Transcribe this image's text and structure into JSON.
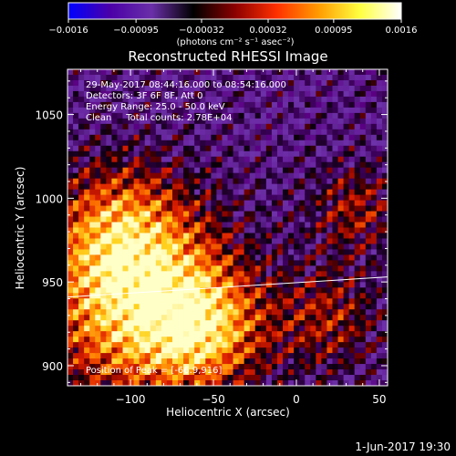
{
  "chart_data": {
    "type": "heatmap",
    "title": "Reconstructed RHESSI Image",
    "xlabel": "Heliocentric X (arcsec)",
    "ylabel": "Heliocentric Y (arcsec)",
    "xlim": [
      -138,
      55
    ],
    "ylim": [
      888,
      1077
    ],
    "x_ticks": [
      -100,
      -50,
      0,
      50
    ],
    "x_tick_labels": [
      "−100",
      "−50",
      "0",
      "50"
    ],
    "y_ticks": [
      900,
      950,
      1000,
      1050
    ],
    "y_tick_labels": [
      "900",
      "950",
      "1000",
      "1050"
    ],
    "colorbar": {
      "range": [
        -0.0016,
        0.0016
      ],
      "ticks": [
        -0.0016,
        -0.00095,
        -0.00032,
        0.00032,
        0.00095,
        0.0016
      ],
      "tick_labels": [
        "−0.0016",
        "−0.00095",
        "−0.00032",
        "0.00032",
        "0.00095",
        "0.0016"
      ],
      "unit_label": "(photons cm⁻² s⁻¹ asec⁻²)",
      "colors": [
        "#0000ff",
        "#4b00a8",
        "#6a2fa8",
        "#000000",
        "#8b0000",
        "#ff3000",
        "#ff9a00",
        "#ffff40",
        "#ffffff"
      ]
    },
    "annotations": [
      "29-May-2017 08:44:16.000 to 08:54:16.000",
      "Detectors: 3F 6F 8F, Att 0",
      "Energy Range: 25.0 - 50.0 keV",
      "Clean     Total counts: 2.78E+04"
    ],
    "peak_label": "Position of Peak = [-66.9,916]",
    "limb_line": [
      [
        -138,
        941
      ],
      [
        55,
        953
      ]
    ],
    "grid": false
  },
  "footer_date": "1-Jun-2017 19:30"
}
